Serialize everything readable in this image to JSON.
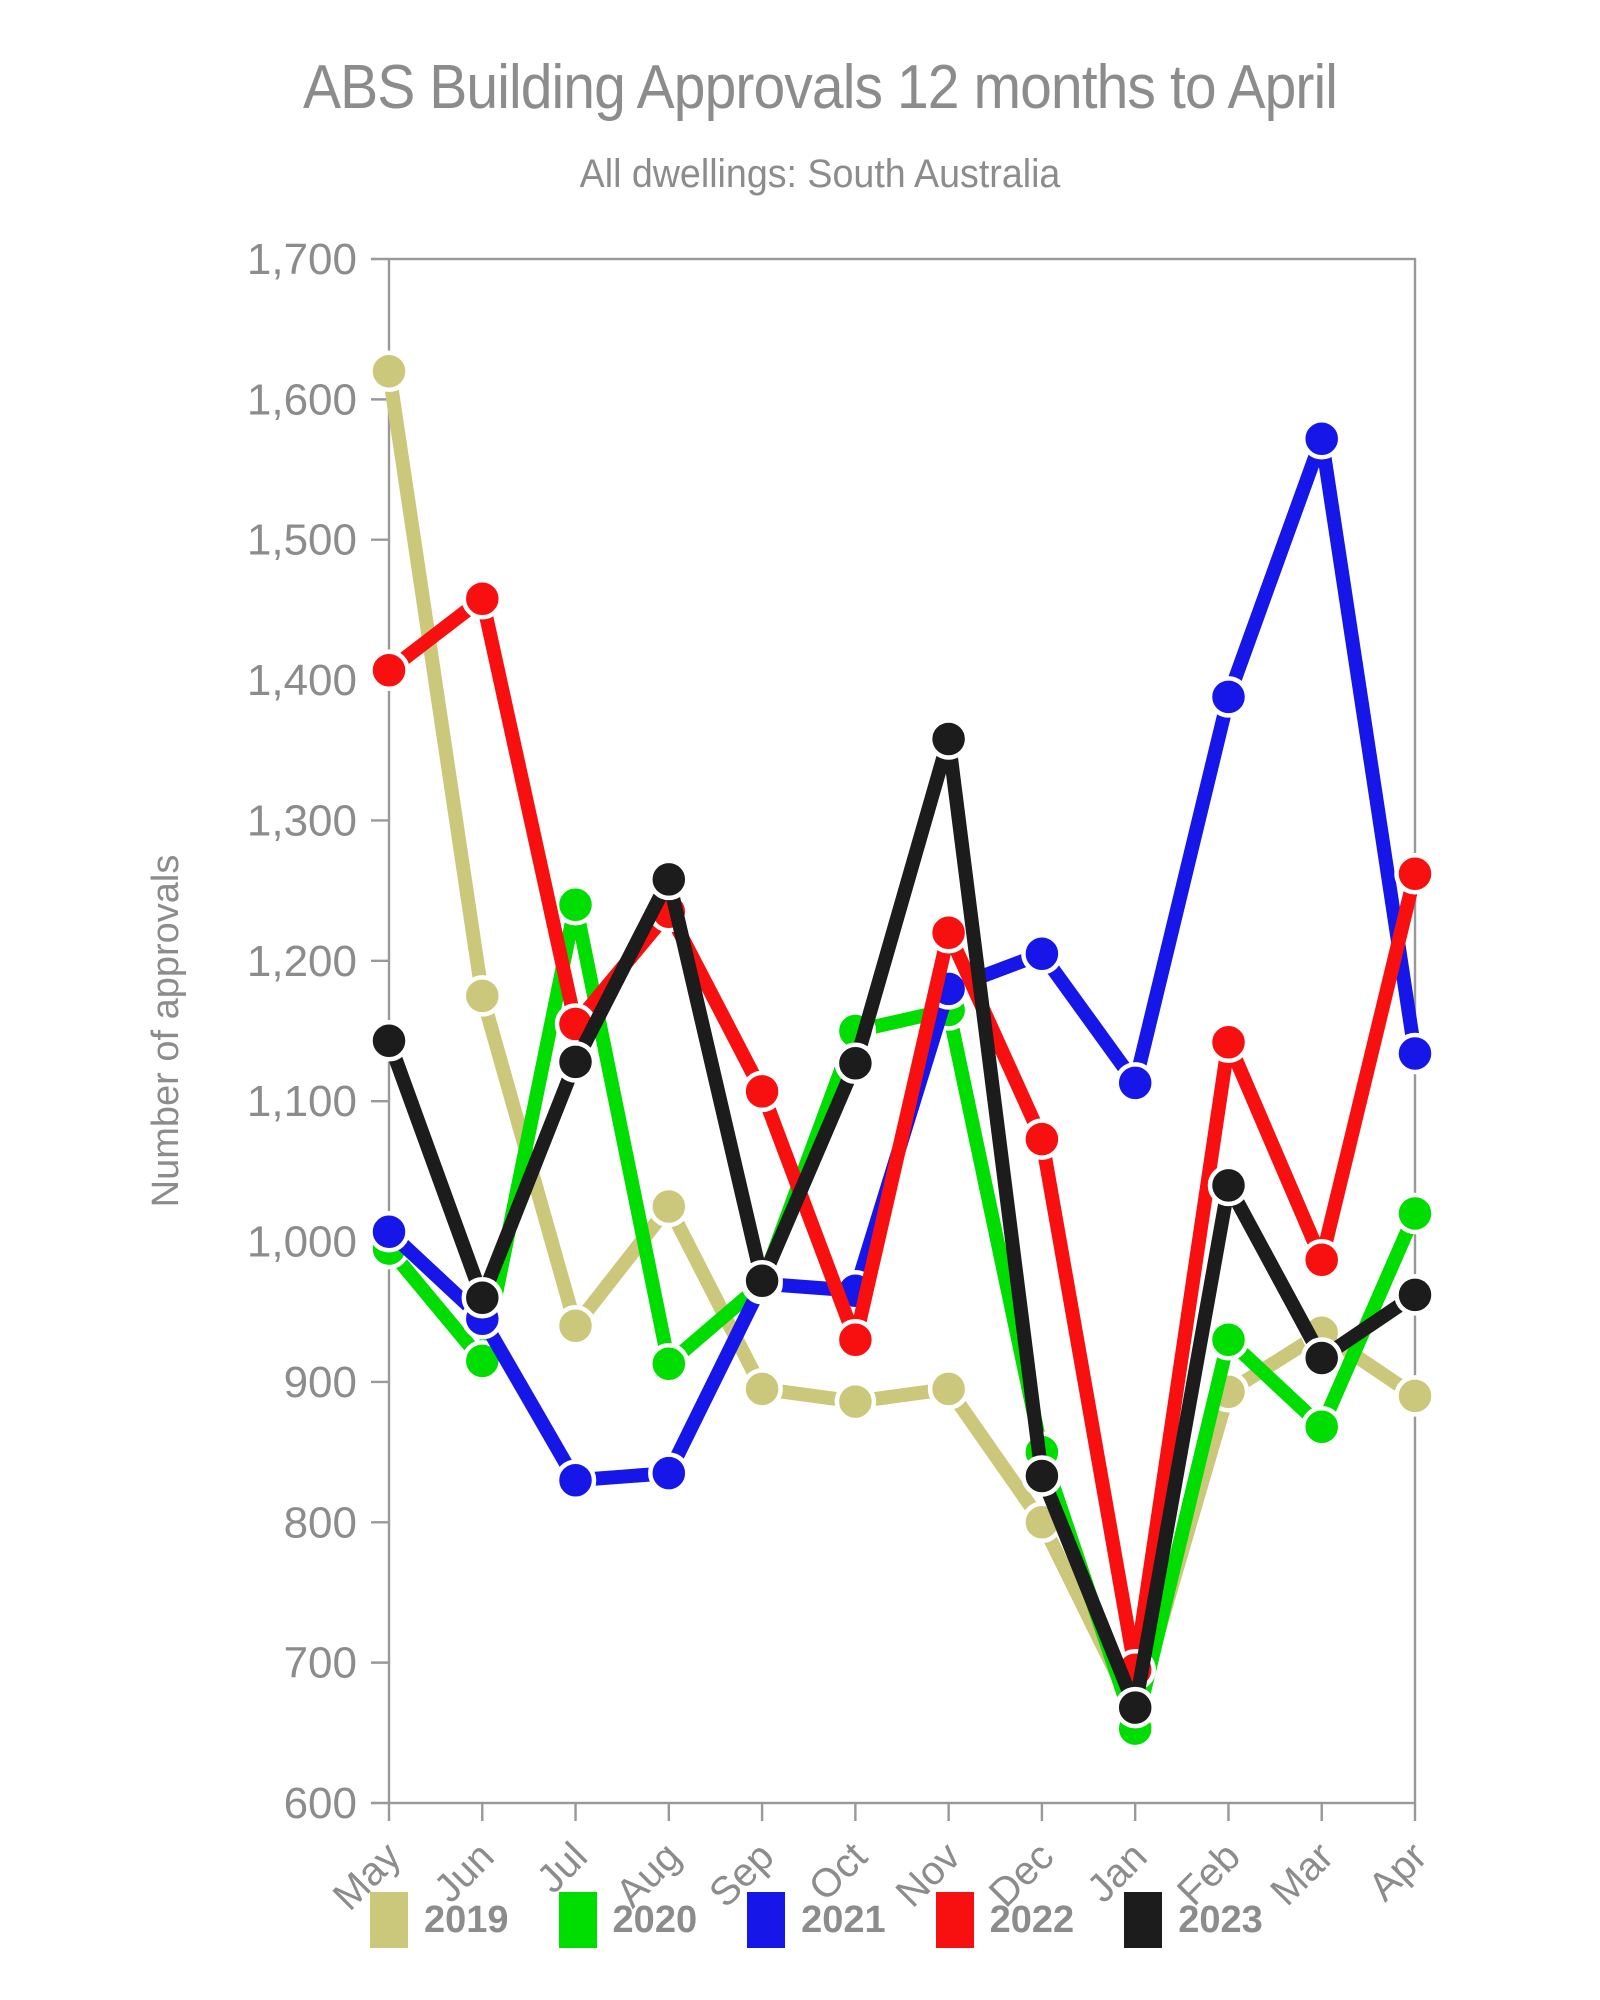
{
  "header": {
    "title": "ABS Building Approvals 12 months to April",
    "subtitle": "All dwellings: South Australia"
  },
  "chart_data": {
    "type": "line",
    "title": "ABS Building Approvals 12 months to April",
    "subtitle": "All dwellings: South Australia",
    "xlabel": "",
    "ylabel": "Number of approvals",
    "categories": [
      "May",
      "Jun",
      "Jul",
      "Aug",
      "Sep",
      "Oct",
      "Nov",
      "Dec",
      "Jan",
      "Feb",
      "Mar",
      "Apr"
    ],
    "ylim": [
      600,
      1700
    ],
    "ytick_step": 100,
    "grid": false,
    "legend_position": "bottom",
    "axis_color": "#999999",
    "tick_label_color": "#8c8c8c",
    "marker_style": "circle-white-ring",
    "series": [
      {
        "name": "2019",
        "color": "#cbc87c",
        "values": [
          1620,
          1175,
          940,
          1025,
          895,
          886,
          895,
          800,
          665,
          893,
          935,
          890
        ]
      },
      {
        "name": "2020",
        "color": "#00dd00",
        "values": [
          995,
          915,
          1240,
          913,
          970,
          1150,
          1165,
          850,
          653,
          930,
          868,
          1020
        ]
      },
      {
        "name": "2021",
        "color": "#1616e8",
        "values": [
          1007,
          945,
          830,
          835,
          970,
          965,
          1180,
          1205,
          1113,
          1388,
          1572,
          1134
        ]
      },
      {
        "name": "2022",
        "color": "#f81010",
        "values": [
          1407,
          1458,
          1155,
          1235,
          1107,
          930,
          1220,
          1073,
          695,
          1142,
          987,
          1262
        ]
      },
      {
        "name": "2023",
        "color": "#1c1c1c",
        "values": [
          1143,
          960,
          1128,
          1258,
          972,
          1127,
          1358,
          833,
          668,
          1040,
          917,
          962
        ]
      }
    ]
  }
}
